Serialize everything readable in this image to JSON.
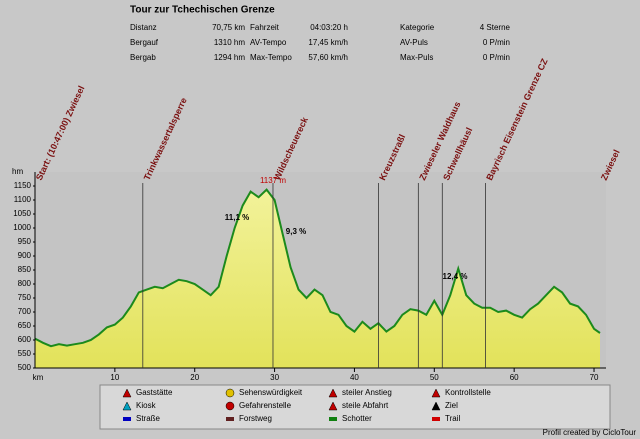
{
  "header": {
    "title": "Tour zur Tchechischen Grenze",
    "stats": [
      [
        [
          "Distanz",
          "70,75 km"
        ],
        [
          "Fahrzeit",
          "04:03:20 h"
        ],
        [
          "Kategorie",
          "4 Sterne"
        ]
      ],
      [
        [
          "Bergauf",
          "1310 hm"
        ],
        [
          "AV-Tempo",
          "17,45 km/h"
        ],
        [
          "AV-Puls",
          "0 P/min"
        ]
      ],
      [
        [
          "Bergab",
          "1294 hm"
        ],
        [
          "Max-Tempo",
          "57,60 km/h"
        ],
        [
          "Max-Puls",
          "0 P/min"
        ]
      ]
    ]
  },
  "chart_data": {
    "type": "area",
    "x_label": "km",
    "y_label": "hm",
    "x": [
      0,
      1,
      2,
      3,
      4,
      5,
      6,
      7,
      8,
      9,
      10,
      11,
      12,
      13,
      14,
      15,
      16,
      17,
      18,
      19,
      20,
      21,
      22,
      23,
      24,
      25,
      26,
      27,
      28,
      29,
      30,
      31,
      32,
      33,
      34,
      35,
      36,
      37,
      38,
      39,
      40,
      41,
      42,
      43,
      44,
      45,
      46,
      47,
      48,
      49,
      50,
      51,
      52,
      53,
      54,
      55,
      56,
      57,
      58,
      59,
      60,
      61,
      62,
      63,
      64,
      65,
      66,
      67,
      68,
      69,
      70,
      70.75
    ],
    "values": [
      605,
      590,
      578,
      585,
      580,
      585,
      590,
      600,
      620,
      645,
      655,
      680,
      720,
      770,
      780,
      790,
      785,
      800,
      815,
      810,
      800,
      780,
      760,
      790,
      900,
      1000,
      1080,
      1130,
      1110,
      1137,
      1100,
      980,
      860,
      780,
      750,
      780,
      760,
      700,
      690,
      650,
      630,
      665,
      640,
      660,
      630,
      650,
      690,
      710,
      705,
      690,
      740,
      690,
      760,
      855,
      760,
      730,
      715,
      715,
      700,
      705,
      690,
      680,
      710,
      730,
      760,
      790,
      770,
      730,
      720,
      690,
      640,
      625
    ],
    "color": "#1c8a1c",
    "xlim": [
      0,
      71.5
    ],
    "ylim": [
      500,
      1200
    ],
    "xticks": [
      10,
      20,
      30,
      40,
      50,
      60,
      70
    ],
    "yticks": [
      500,
      550,
      600,
      650,
      700,
      750,
      800,
      850,
      900,
      950,
      1000,
      1050,
      1100,
      1150
    ],
    "waypoints": [
      {
        "name": "Start: (10:47:00) Zwiesel",
        "km": 0
      },
      {
        "name": "Trinkwassertalsperre",
        "km": 13.5
      },
      {
        "name": "Wildscheuereck",
        "km": 29.8
      },
      {
        "name": "Kreuzstraßl",
        "km": 43
      },
      {
        "name": "Zwieseler Waldhaus",
        "km": 48
      },
      {
        "name": "Schwellhäusl",
        "km": 51
      },
      {
        "name": "Bayrisch Eisenstein Grenze CZ",
        "km": 56.4
      },
      {
        "name": "Zwiesel",
        "km": 70.75
      }
    ],
    "annotations": [
      "1137 m",
      "11,1 %",
      "9,3 %",
      "12,4 %"
    ]
  },
  "legend": [
    "Gaststätte",
    "Sehenswürdigkeit",
    "steiler Anstieg",
    "Kontrollstelle",
    "Kiosk",
    "Gefahrenstelle",
    "steile Abfahrt",
    "Ziel",
    "Straße",
    "Forstweg",
    "Schotter",
    "Trail"
  ],
  "footer": "Profil created by CicloTour"
}
